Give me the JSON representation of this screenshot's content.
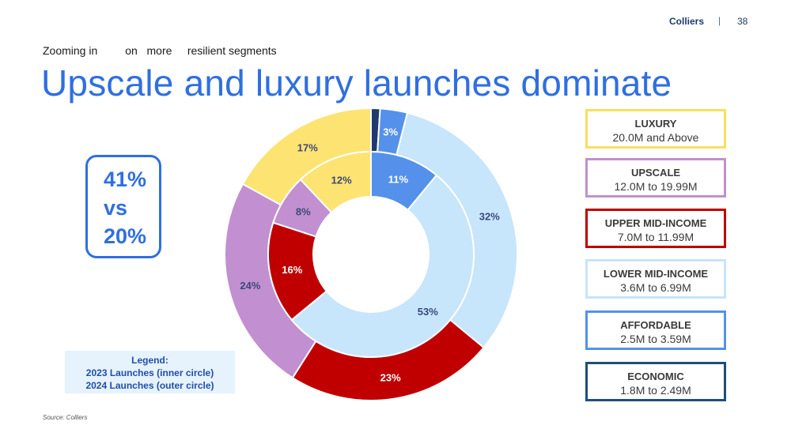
{
  "header": {
    "brand": "Colliers",
    "separator": "|",
    "page": "38"
  },
  "subtitle": "Zooming in         on   more     resilient segments",
  "title": "Upscale and luxury launches dominate",
  "callout": {
    "line1": "41%",
    "line2": "vs",
    "line3": "20%"
  },
  "legend": {
    "title": "Legend:",
    "line1": "2023 Launches (inner circle)",
    "line2": "2024 Launches (outer circle)"
  },
  "source": "Source: Colliers",
  "segments": [
    {
      "name": "LUXURY",
      "range": "20.0M and Above",
      "color": "#f7df5e"
    },
    {
      "name": "UPSCALE",
      "range": "12.0M to 19.99M",
      "color": "#c28fd0"
    },
    {
      "name": "UPPER MID-INCOME",
      "range": "7.0M to 11.99M",
      "color": "#c00000"
    },
    {
      "name": "LOWER MID-INCOME",
      "range": "3.6M to 6.99M",
      "color": "#c7e5fb"
    },
    {
      "name": "AFFORDABLE",
      "range": "2.5M to 3.59M",
      "color": "#5591ea"
    },
    {
      "name": "ECONOMIC",
      "range": "1.8M to 2.49M",
      "color": "#1f4e79"
    }
  ],
  "chart_data": {
    "type": "donut",
    "series": [
      {
        "name": "2024 Launches (outer circle)",
        "ring": "outer",
        "slices": [
          {
            "segment": "ECONOMIC",
            "value": 1,
            "label": "",
            "color": "#1f3a6e"
          },
          {
            "segment": "AFFORDABLE",
            "value": 3,
            "label": "3%",
            "color": "#5591ea"
          },
          {
            "segment": "LOWER MID-INCOME",
            "value": 32,
            "label": "32%",
            "color": "#c7e5fb"
          },
          {
            "segment": "UPPER MID-INCOME",
            "value": 23,
            "label": "23%",
            "color": "#c00000"
          },
          {
            "segment": "UPSCALE",
            "value": 24,
            "label": "24%",
            "color": "#c28fd0"
          },
          {
            "segment": "LUXURY",
            "value": 17,
            "label": "17%",
            "color": "#fde371"
          }
        ]
      },
      {
        "name": "2023 Launches (inner circle)",
        "ring": "inner",
        "slices": [
          {
            "segment": "AFFORDABLE",
            "value": 11,
            "label": "11%",
            "color": "#5591ea"
          },
          {
            "segment": "LOWER MID-INCOME",
            "value": 53,
            "label": "53%",
            "color": "#c7e5fb"
          },
          {
            "segment": "UPPER MID-INCOME",
            "value": 16,
            "label": "16%",
            "color": "#c00000"
          },
          {
            "segment": "UPSCALE",
            "value": 8,
            "label": "8%",
            "color": "#c28fd0"
          },
          {
            "segment": "LUXURY",
            "value": 12,
            "label": "12%",
            "color": "#fde371"
          }
        ]
      }
    ]
  }
}
